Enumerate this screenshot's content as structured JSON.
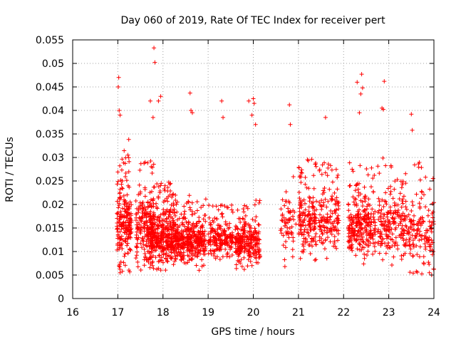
{
  "chart_data": {
    "type": "scatter",
    "title": "Day 060 of 2019, Rate Of TEC Index for receiver pert",
    "xlabel": "GPS time / hours",
    "ylabel": "ROTI / TECUs",
    "xlim": [
      16,
      24
    ],
    "ylim": [
      0,
      0.055
    ],
    "xticks": [
      16,
      17,
      18,
      19,
      20,
      21,
      22,
      23,
      24
    ],
    "xtick_labels": [
      "16",
      "17",
      "18",
      "19",
      "20",
      "21",
      "22",
      "23",
      "24"
    ],
    "yticks": [
      0,
      0.005,
      0.01,
      0.015,
      0.02,
      0.025,
      0.03,
      0.035,
      0.04,
      0.045,
      0.05,
      0.055
    ],
    "ytick_labels": [
      "0",
      "0.005",
      "0.01",
      "0.015",
      "0.02",
      "0.025",
      "0.03",
      "0.035",
      "0.04",
      "0.045",
      "0.05",
      "0.055"
    ],
    "grid": true,
    "marker": "+",
    "color": "#ff0000",
    "series": [
      {
        "name": "ROTI",
        "clusters": [
          {
            "x_range": [
              16.98,
              17.3
            ],
            "y_range": [
              0.005,
              0.034
            ],
            "count": 200
          },
          {
            "x_range": [
              17.4,
              17.8
            ],
            "y_range": [
              0.006,
              0.03
            ],
            "count": 200
          },
          {
            "x_range": [
              17.7,
              18.3
            ],
            "y_range": [
              0.006,
              0.025
            ],
            "count": 400
          },
          {
            "x_range": [
              18.3,
              18.95
            ],
            "y_range": [
              0.006,
              0.022
            ],
            "count": 350
          },
          {
            "x_range": [
              19.0,
              19.55
            ],
            "y_range": [
              0.008,
              0.02
            ],
            "count": 200
          },
          {
            "x_range": [
              19.6,
              20.15
            ],
            "y_range": [
              0.006,
              0.021
            ],
            "count": 250
          },
          {
            "x_range": [
              20.6,
              20.95
            ],
            "y_range": [
              0.007,
              0.03
            ],
            "count": 60
          },
          {
            "x_range": [
              21.0,
              21.4
            ],
            "y_range": [
              0.008,
              0.03
            ],
            "count": 160
          },
          {
            "x_range": [
              21.45,
              21.9
            ],
            "y_range": [
              0.008,
              0.03
            ],
            "count": 140
          },
          {
            "x_range": [
              22.1,
              22.7
            ],
            "y_range": [
              0.007,
              0.029
            ],
            "count": 260
          },
          {
            "x_range": [
              22.75,
              23.4
            ],
            "y_range": [
              0.007,
              0.03
            ],
            "count": 200
          },
          {
            "x_range": [
              23.4,
              24.0
            ],
            "y_range": [
              0.005,
              0.029
            ],
            "count": 150
          }
        ],
        "outliers": [
          [
            17.02,
            0.047
          ],
          [
            17.01,
            0.045
          ],
          [
            17.03,
            0.04
          ],
          [
            17.05,
            0.039
          ],
          [
            17.8,
            0.0533
          ],
          [
            17.82,
            0.0502
          ],
          [
            17.9,
            0.042
          ],
          [
            17.95,
            0.043
          ],
          [
            17.72,
            0.042
          ],
          [
            17.78,
            0.0385
          ],
          [
            18.6,
            0.0437
          ],
          [
            18.62,
            0.04
          ],
          [
            18.65,
            0.0395
          ],
          [
            19.3,
            0.042
          ],
          [
            19.33,
            0.0385
          ],
          [
            19.9,
            0.042
          ],
          [
            20.0,
            0.0425
          ],
          [
            20.02,
            0.0415
          ],
          [
            19.97,
            0.039
          ],
          [
            20.05,
            0.037
          ],
          [
            20.8,
            0.0412
          ],
          [
            20.82,
            0.037
          ],
          [
            21.6,
            0.0385
          ],
          [
            22.3,
            0.046
          ],
          [
            22.4,
            0.0477
          ],
          [
            22.42,
            0.0448
          ],
          [
            22.38,
            0.0435
          ],
          [
            22.35,
            0.0395
          ],
          [
            22.9,
            0.0462
          ],
          [
            22.85,
            0.0405
          ],
          [
            22.88,
            0.0402
          ],
          [
            23.5,
            0.0392
          ],
          [
            23.52,
            0.0358
          ],
          [
            17.05,
            0.0055
          ],
          [
            17.1,
            0.0058
          ],
          [
            18.8,
            0.006
          ],
          [
            19.8,
            0.0062
          ],
          [
            20.7,
            0.0068
          ],
          [
            23.95,
            0.005
          ],
          [
            23.9,
            0.0055
          ]
        ]
      }
    ]
  }
}
